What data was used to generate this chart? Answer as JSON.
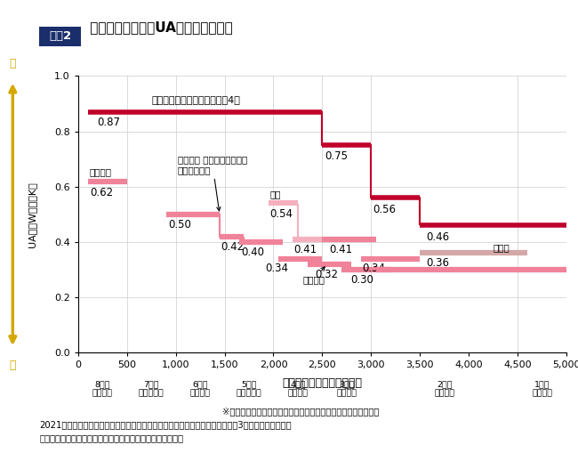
{
  "title_box": "図表2",
  "title_text": " 住宅の断熱基準（UA値）の国際比較",
  "xlabel": "暖房デグリーデー（度日）",
  "ylabel_lines": [
    "U",
    "A",
    "値",
    "（",
    "W",
    "／",
    "㎡",
    "・",
    "K",
    "）"
  ],
  "xlim": [
    0,
    5000
  ],
  "ylim": [
    0.0,
    1.0
  ],
  "yticks": [
    0.0,
    0.2,
    0.4,
    0.6,
    0.8,
    1.0
  ],
  "xticks": [
    0,
    500,
    1000,
    1500,
    2000,
    2500,
    3000,
    3500,
    4000,
    4500,
    5000
  ],
  "japan_color": "#c0002a",
  "intl_color": "#f0829a",
  "germany_color": "#d4a8a8",
  "korea_color": "#f5b0c0",
  "zones": [
    {
      "label": "8地域\n（那覇）",
      "xmin": 0,
      "xmax": 500
    },
    {
      "label": "7地域\n（鹿児島）",
      "xmin": 500,
      "xmax": 1000
    },
    {
      "label": "6地域\n（東京）",
      "xmin": 1000,
      "xmax": 1500
    },
    {
      "label": "5地域\n（つくば）",
      "xmin": 1500,
      "xmax": 2000
    },
    {
      "label": "4地域\n（長野）",
      "xmin": 2000,
      "xmax": 2500
    },
    {
      "label": "3地域\n（盛岡）",
      "xmin": 2500,
      "xmax": 3000
    },
    {
      "label": "2地域\n（札幌）",
      "xmin": 3000,
      "xmax": 4500
    },
    {
      "label": "1地域\n（旭川）",
      "xmin": 4500,
      "xmax": 5000
    }
  ],
  "note": "※「暖房デグリーデー」とは、各地域の寒さの度合いを示す指標",
  "source1": "2021年の国土交通省の資料をもとに作成（元データは、野村総合研究所：令和3年度「海外における",
  "source2": "住宅・建築物の省エネルギー規制・基準等に関する調査」）",
  "arrow_top": "劣",
  "arrow_bottom": "優",
  "title_box_color": "#1a2e6c",
  "arrow_color": "#d4a800",
  "zone_arrow_color": "#c8a000",
  "grid_color": "#cccccc"
}
